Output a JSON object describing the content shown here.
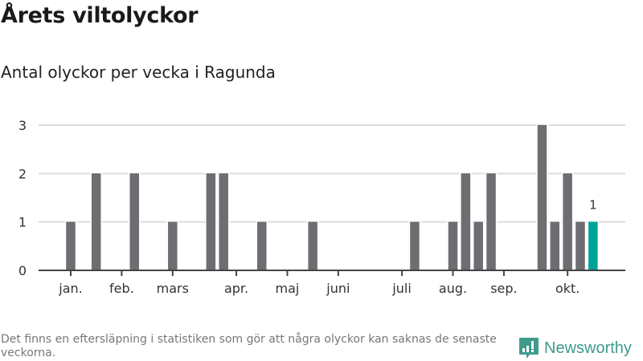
{
  "header": {
    "title": "Årets viltolyckor",
    "subtitle": "Antal olyckor per vecka i Ragunda"
  },
  "footer": {
    "note": "Det finns en eftersläpning i statistiken som gör att några olyckor kan saknas de senaste veckorna.",
    "brand": "Newsworthy"
  },
  "colors": {
    "bar": "#6e6d72",
    "highlight": "#00a39a",
    "grid": "#dddddd",
    "axis": "#444444",
    "brand": "#3f9b8c"
  },
  "chart_data": {
    "type": "bar",
    "title": "Antal olyckor per vecka i Ragunda",
    "xlabel": "",
    "ylabel": "",
    "ylim": [
      0,
      3
    ],
    "yticks": [
      "0",
      "1",
      "2",
      "3"
    ],
    "xlim_weeks": [
      -1.5,
      44.5
    ],
    "month_ticks": [
      {
        "label": "jan.",
        "week": 1
      },
      {
        "label": "feb.",
        "week": 5
      },
      {
        "label": "mars",
        "week": 9
      },
      {
        "label": "apr.",
        "week": 14
      },
      {
        "label": "maj",
        "week": 18
      },
      {
        "label": "juni",
        "week": 22
      },
      {
        "label": "juli",
        "week": 27
      },
      {
        "label": "aug.",
        "week": 31
      },
      {
        "label": "sep.",
        "week": 35
      },
      {
        "label": "okt.",
        "week": 40
      }
    ],
    "weeks": [
      1,
      3,
      6,
      9,
      12,
      13,
      16,
      20,
      28,
      31,
      32,
      33,
      34,
      38,
      39,
      40,
      41,
      42
    ],
    "values": [
      1,
      2,
      2,
      1,
      2,
      2,
      1,
      1,
      1,
      1,
      2,
      1,
      2,
      3,
      1,
      2,
      1,
      1
    ],
    "highlight_week": 42,
    "highlight_label": "1"
  }
}
